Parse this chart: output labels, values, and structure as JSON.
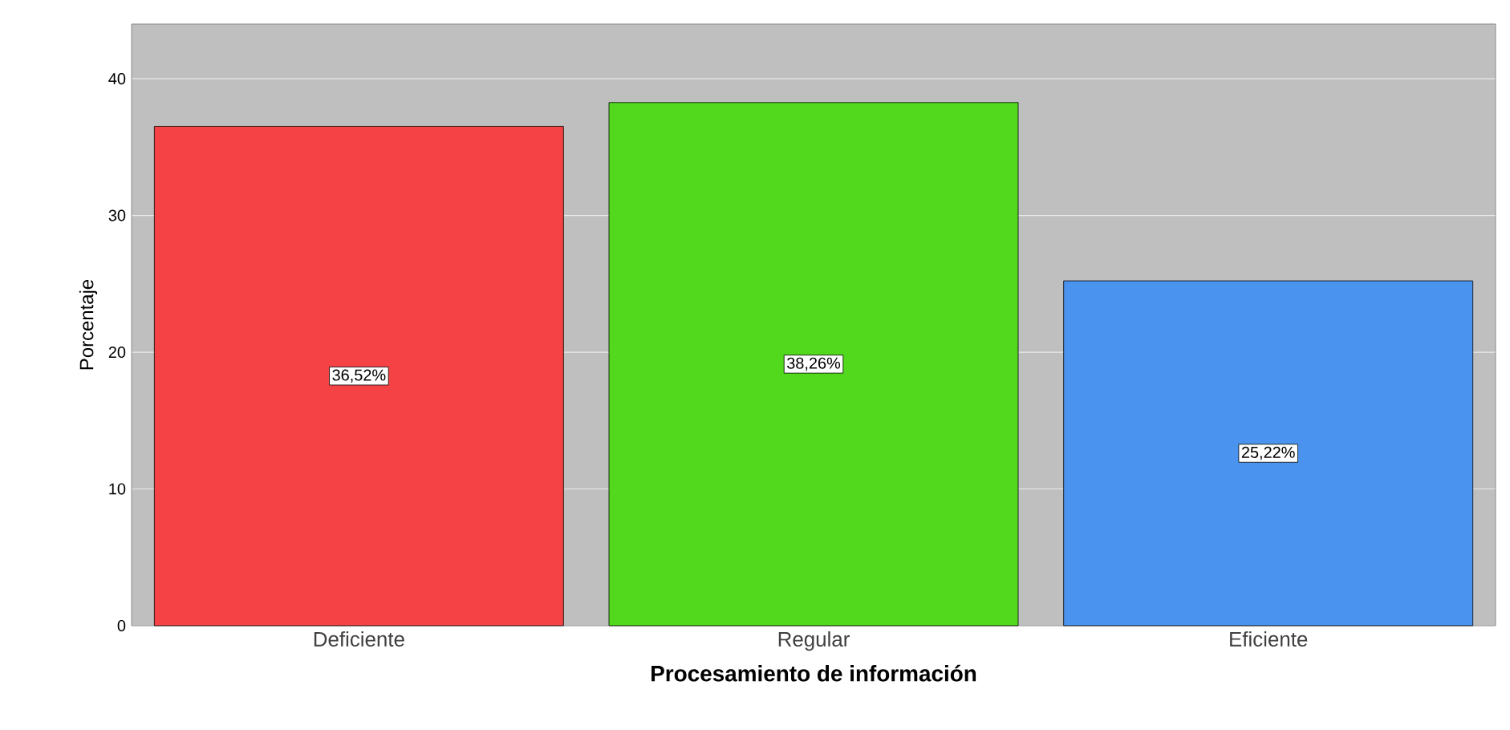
{
  "chart_data": {
    "type": "bar",
    "xlabel": "Procesamiento de información",
    "ylabel": "Porcentaje",
    "categories": [
      "Deficiente",
      "Regular",
      "Eficiente"
    ],
    "values": [
      36.52,
      38.26,
      25.22
    ],
    "colors": [
      "#f44245",
      "#52d91e",
      "#4a93ee"
    ],
    "value_labels": [
      "36,52%",
      "38,26%",
      "25,22%"
    ],
    "ylim": [
      0,
      44
    ],
    "yticks": [
      0,
      10,
      20,
      30,
      40
    ],
    "grid": "y"
  }
}
